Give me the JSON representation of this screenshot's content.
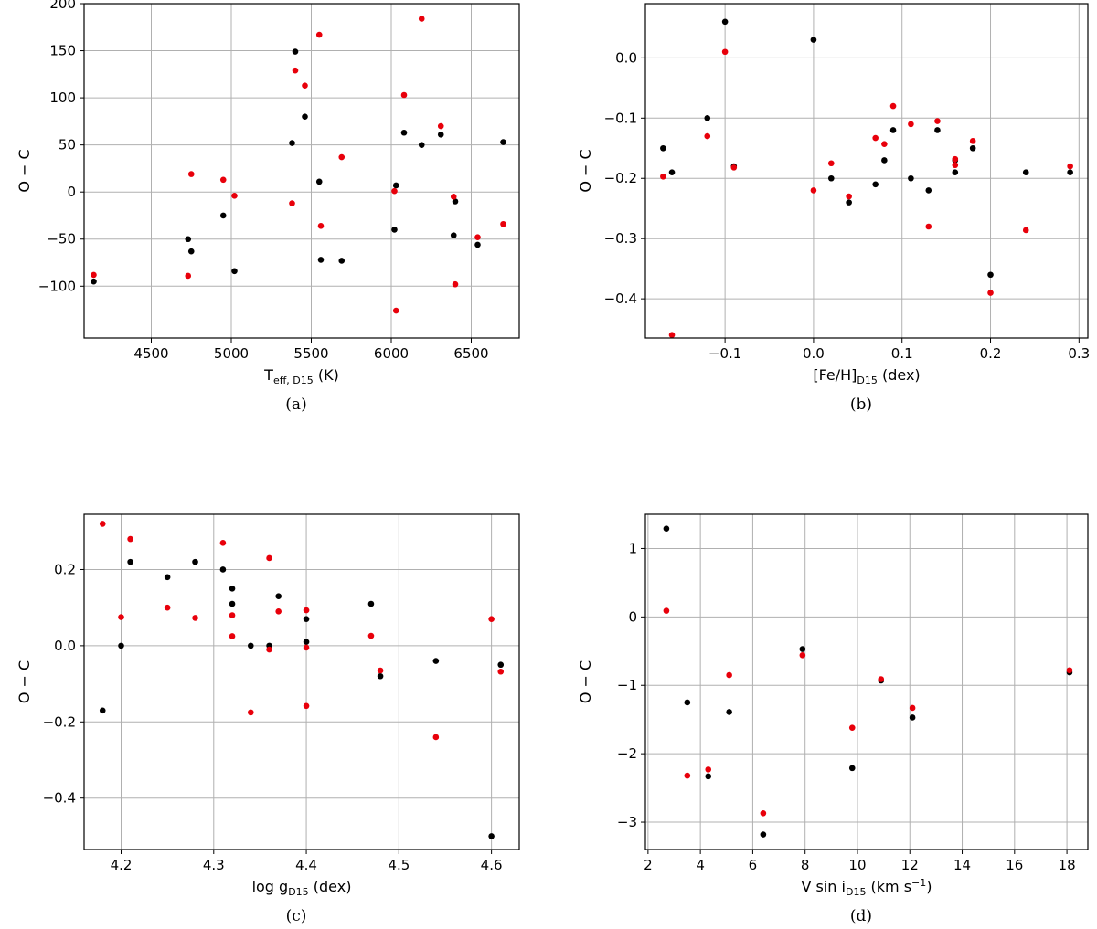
{
  "figure": {
    "colors": {
      "black_series": "#000000",
      "red_series": "#e8000b",
      "grid": "#b0b0b0"
    }
  },
  "chart_data": [
    {
      "type": "scatter",
      "panel_label": "(a)",
      "ylabel": "O − C",
      "xlabel": {
        "base": "T",
        "sub": "eff, D15",
        "unit": " (K)"
      },
      "xlim": [
        4080,
        6800
      ],
      "ylim": [
        -155,
        200
      ],
      "xticks": [
        4500,
        5000,
        5500,
        6000,
        6500
      ],
      "xtick_labels": [
        "4500",
        "5000",
        "5500",
        "6000",
        "6500"
      ],
      "yticks": [
        -100,
        -50,
        0,
        50,
        100,
        150,
        200
      ],
      "ytick_labels": [
        "−100",
        "−50",
        "0",
        "50",
        "100",
        "150",
        "200"
      ],
      "grid": true,
      "series": [
        {
          "color": "black",
          "points": [
            [
              4140,
              -95
            ],
            [
              4730,
              -50
            ],
            [
              4750,
              -63
            ],
            [
              4950,
              -25
            ],
            [
              5020,
              -84
            ],
            [
              5380,
              52
            ],
            [
              5400,
              149
            ],
            [
              5460,
              80
            ],
            [
              5550,
              11
            ],
            [
              5560,
              -72
            ],
            [
              5690,
              -73
            ],
            [
              6020,
              -40
            ],
            [
              6030,
              7
            ],
            [
              6080,
              63
            ],
            [
              6190,
              50
            ],
            [
              6310,
              61
            ],
            [
              6390,
              -46
            ],
            [
              6400,
              -10
            ],
            [
              6540,
              -56
            ],
            [
              6700,
              53
            ]
          ]
        },
        {
          "color": "red",
          "points": [
            [
              4140,
              -88
            ],
            [
              4730,
              -89
            ],
            [
              4750,
              19
            ],
            [
              4950,
              13
            ],
            [
              5020,
              -4
            ],
            [
              5380,
              -12
            ],
            [
              5400,
              129
            ],
            [
              5460,
              113
            ],
            [
              5550,
              167
            ],
            [
              5560,
              -36
            ],
            [
              5690,
              37
            ],
            [
              6020,
              1
            ],
            [
              6030,
              -126
            ],
            [
              6080,
              103
            ],
            [
              6190,
              184
            ],
            [
              6310,
              70
            ],
            [
              6390,
              -5
            ],
            [
              6400,
              -98
            ],
            [
              6540,
              -48
            ],
            [
              6700,
              -34
            ]
          ]
        }
      ]
    },
    {
      "type": "scatter",
      "panel_label": "(b)",
      "ylabel": "O − C",
      "xlabel": {
        "base": "[Fe/H]",
        "sub": "D15",
        "unit": " (dex)"
      },
      "xlim": [
        -0.19,
        0.31
      ],
      "ylim": [
        -0.465,
        0.09
      ],
      "xticks": [
        -0.1,
        0.0,
        0.1,
        0.2,
        0.3
      ],
      "xtick_labels": [
        "−0.1",
        "0.0",
        "0.1",
        "0.2",
        "0.3"
      ],
      "yticks": [
        -0.4,
        -0.3,
        -0.2,
        -0.1,
        0.0
      ],
      "ytick_labels": [
        "−0.4",
        "−0.3",
        "−0.2",
        "−0.1",
        "0.0"
      ],
      "grid": true,
      "series": [
        {
          "color": "black",
          "points": [
            [
              -0.17,
              -0.15
            ],
            [
              -0.16,
              -0.19
            ],
            [
              -0.12,
              -0.1
            ],
            [
              -0.1,
              0.06
            ],
            [
              -0.09,
              -0.18
            ],
            [
              0.0,
              0.03
            ],
            [
              0.02,
              -0.2
            ],
            [
              0.04,
              -0.24
            ],
            [
              0.07,
              -0.21
            ],
            [
              0.08,
              -0.17
            ],
            [
              0.09,
              -0.12
            ],
            [
              0.11,
              -0.2
            ],
            [
              0.13,
              -0.22
            ],
            [
              0.14,
              -0.12
            ],
            [
              0.16,
              -0.19
            ],
            [
              0.16,
              -0.17
            ],
            [
              0.18,
              -0.15
            ],
            [
              0.2,
              -0.36
            ],
            [
              0.24,
              -0.19
            ],
            [
              0.29,
              -0.19
            ]
          ]
        },
        {
          "color": "red",
          "points": [
            [
              -0.17,
              -0.197
            ],
            [
              -0.16,
              -0.46
            ],
            [
              -0.12,
              -0.13
            ],
            [
              -0.1,
              0.01
            ],
            [
              -0.09,
              -0.182
            ],
            [
              0.0,
              -0.22
            ],
            [
              0.02,
              -0.175
            ],
            [
              0.04,
              -0.23
            ],
            [
              0.07,
              -0.133
            ],
            [
              0.08,
              -0.143
            ],
            [
              0.09,
              -0.08
            ],
            [
              0.11,
              -0.11
            ],
            [
              0.13,
              -0.28
            ],
            [
              0.14,
              -0.105
            ],
            [
              0.16,
              -0.178
            ],
            [
              0.16,
              -0.168
            ],
            [
              0.18,
              -0.138
            ],
            [
              0.2,
              -0.39
            ],
            [
              0.24,
              -0.286
            ],
            [
              0.29,
              -0.18
            ]
          ]
        }
      ]
    },
    {
      "type": "scatter",
      "panel_label": "(c)",
      "ylabel": "O − C",
      "xlabel": {
        "base": "log g",
        "sub": "D15",
        "unit": " (dex)"
      },
      "xlim": [
        4.16,
        4.63
      ],
      "ylim": [
        -0.535,
        0.345
      ],
      "xticks": [
        4.2,
        4.3,
        4.4,
        4.5,
        4.6
      ],
      "xtick_labels": [
        "4.2",
        "4.3",
        "4.4",
        "4.5",
        "4.6"
      ],
      "yticks": [
        -0.4,
        -0.2,
        0.0,
        0.2
      ],
      "ytick_labels": [
        "−0.4",
        "−0.2",
        "0.0",
        "0.2"
      ],
      "grid": true,
      "series": [
        {
          "color": "black",
          "points": [
            [
              4.18,
              -0.17
            ],
            [
              4.2,
              0.0
            ],
            [
              4.21,
              0.22
            ],
            [
              4.25,
              0.18
            ],
            [
              4.28,
              0.22
            ],
            [
              4.31,
              0.2
            ],
            [
              4.32,
              0.15
            ],
            [
              4.32,
              0.11
            ],
            [
              4.34,
              0.0
            ],
            [
              4.36,
              0.0
            ],
            [
              4.37,
              0.13
            ],
            [
              4.4,
              0.07
            ],
            [
              4.4,
              0.01
            ],
            [
              4.47,
              0.11
            ],
            [
              4.48,
              -0.08
            ],
            [
              4.54,
              -0.04
            ],
            [
              4.6,
              -0.5
            ],
            [
              4.61,
              -0.05
            ]
          ]
        },
        {
          "color": "red",
          "points": [
            [
              4.18,
              0.32
            ],
            [
              4.2,
              0.075
            ],
            [
              4.21,
              0.28
            ],
            [
              4.25,
              0.1
            ],
            [
              4.28,
              0.073
            ],
            [
              4.31,
              0.27
            ],
            [
              4.32,
              0.08
            ],
            [
              4.32,
              0.025
            ],
            [
              4.34,
              -0.175
            ],
            [
              4.36,
              0.23
            ],
            [
              4.36,
              -0.01
            ],
            [
              4.37,
              0.09
            ],
            [
              4.4,
              0.093
            ],
            [
              4.4,
              -0.005
            ],
            [
              4.4,
              -0.158
            ],
            [
              4.47,
              0.026
            ],
            [
              4.48,
              -0.065
            ],
            [
              4.54,
              -0.24
            ],
            [
              4.6,
              0.07
            ],
            [
              4.61,
              -0.068
            ]
          ]
        }
      ]
    },
    {
      "type": "scatter",
      "panel_label": "(d)",
      "ylabel": "O − C",
      "xlabel": {
        "base": "V sin i",
        "sub": "D15",
        "unit": " (km s",
        "unit_sup": "−1",
        "unit_end": ")"
      },
      "xlim": [
        1.9,
        18.8
      ],
      "ylim": [
        -3.4,
        1.5
      ],
      "xticks": [
        2,
        4,
        6,
        8,
        10,
        12,
        14,
        16,
        18
      ],
      "xtick_labels": [
        "2",
        "4",
        "6",
        "8",
        "10",
        "12",
        "14",
        "16",
        "18"
      ],
      "yticks": [
        -3,
        -2,
        -1,
        0,
        1
      ],
      "ytick_labels": [
        "−3",
        "−2",
        "−1",
        "0",
        "1"
      ],
      "grid": true,
      "series": [
        {
          "color": "black",
          "points": [
            [
              2.7,
              1.29
            ],
            [
              3.5,
              -1.25
            ],
            [
              4.3,
              -2.33
            ],
            [
              5.1,
              -1.39
            ],
            [
              6.4,
              -3.18
            ],
            [
              7.9,
              -0.47
            ],
            [
              9.8,
              -2.21
            ],
            [
              10.9,
              -0.93
            ],
            [
              12.1,
              -1.47
            ],
            [
              18.1,
              -0.81
            ]
          ]
        },
        {
          "color": "red",
          "points": [
            [
              2.7,
              0.09
            ],
            [
              3.5,
              -2.32
            ],
            [
              4.3,
              -2.23
            ],
            [
              5.1,
              -0.85
            ],
            [
              6.4,
              -2.87
            ],
            [
              7.9,
              -0.56
            ],
            [
              9.8,
              -1.62
            ],
            [
              10.9,
              -0.91
            ],
            [
              12.1,
              -1.33
            ],
            [
              18.1,
              -0.78
            ]
          ]
        }
      ]
    }
  ]
}
